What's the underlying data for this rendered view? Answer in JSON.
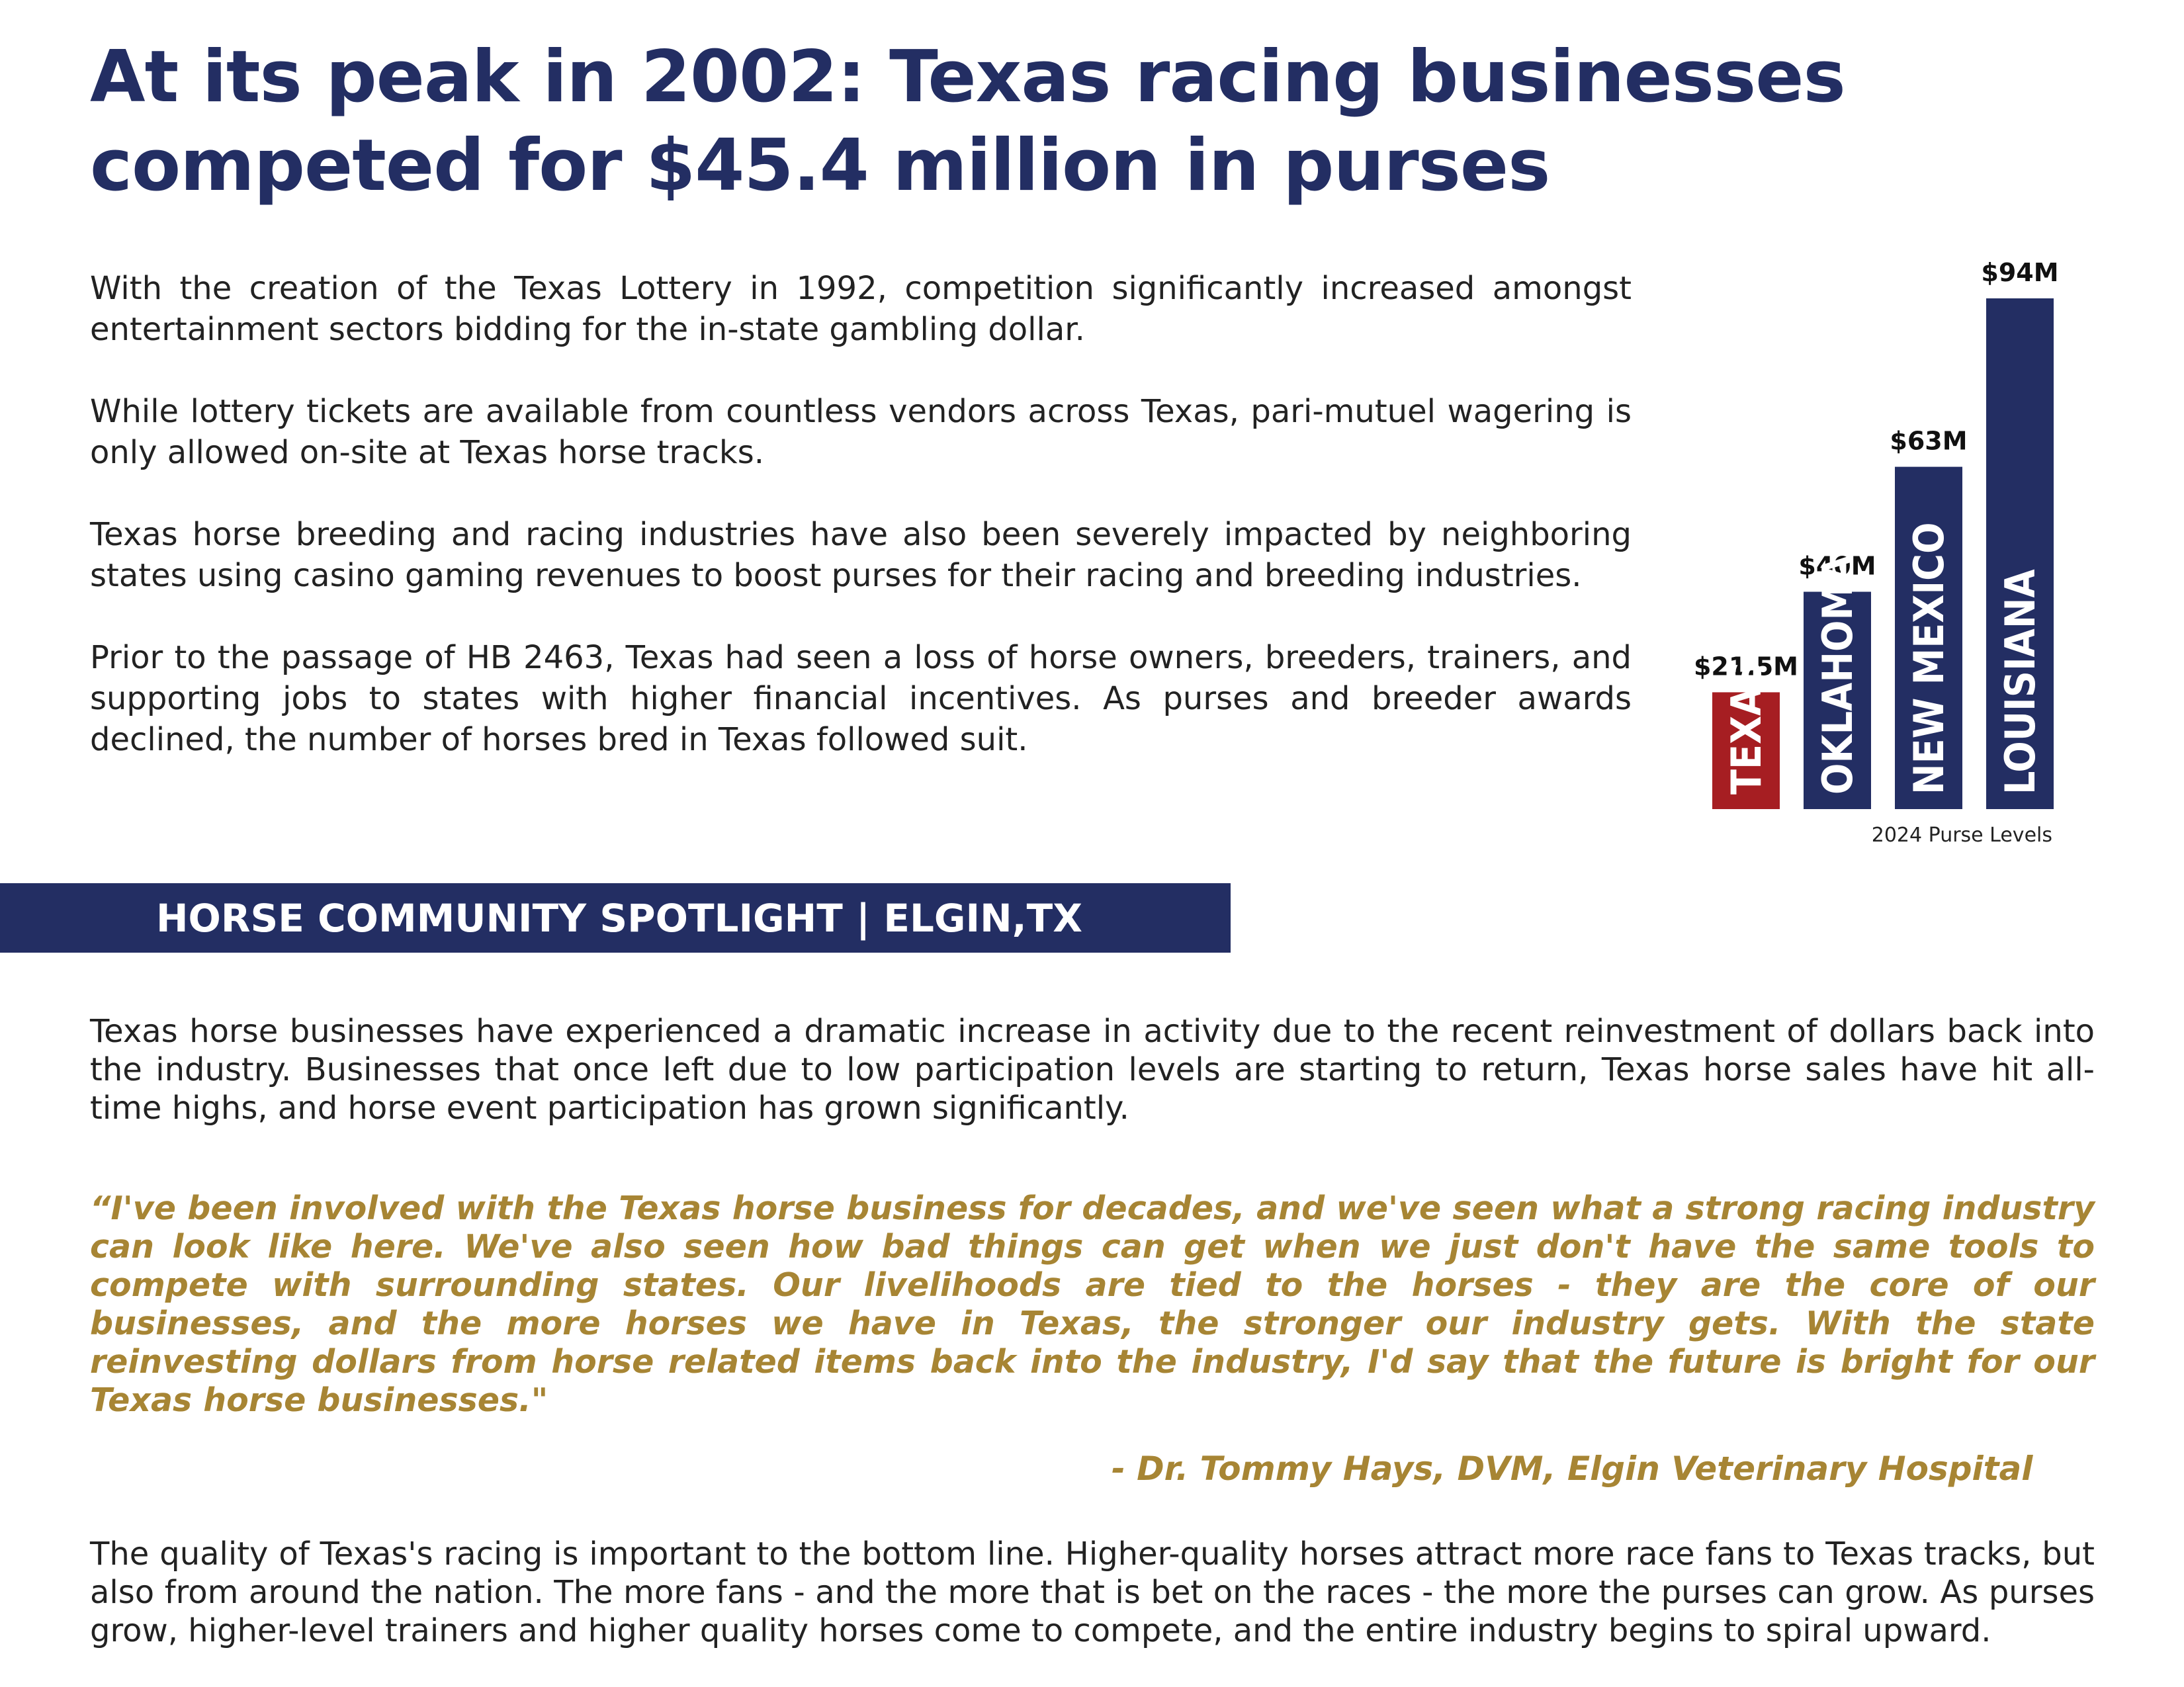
{
  "title": {
    "line1": "At its peak in 2002: Texas racing businesses",
    "line2": "competed for $45.4 million in purses"
  },
  "intro": [
    "With the creation of the Texas Lottery in 1992, competition significantly increased amongst entertainment sectors bidding for the in-state gambling dollar.",
    "While lottery tickets are available from countless vendors across Texas, pari-mutuel wagering is only allowed on-site at Texas horse tracks.",
    "Texas horse breeding and racing industries have also been severely impacted by neighboring states using casino gaming revenues to boost purses for their racing and breeding industries.",
    "Prior to the passage of HB 2463, Texas had seen a loss of horse owners, breeders, trainers, and supporting jobs to states with higher financial incentives. As purses and breeder awards declined, the number of horses bred in Texas followed suit."
  ],
  "chart_data": {
    "type": "bar",
    "categories": [
      "TEXAS",
      "OKLAHOMA",
      "NEW MEXICO",
      "LOUISIANA"
    ],
    "values": [
      21.5,
      40,
      63,
      94
    ],
    "value_labels": [
      "$21.5M",
      "$40M",
      "$63M",
      "$94M"
    ],
    "caption": "2024 Purse Levels",
    "colors": [
      "#a61e22",
      "#232e63",
      "#232e63",
      "#232e63"
    ],
    "ylim": [
      0,
      94
    ]
  },
  "spotlight": {
    "heading": "HORSE COMMUNITY SPOTLIGHT | ELGIN,TX"
  },
  "spotlight_paragraph": "Texas horse businesses have experienced a dramatic increase in activity due to the recent reinvestment of dollars back into the industry. Businesses that once left due to low participation levels are starting to return, Texas horse sales have hit all-time highs, and horse event participation has grown significantly.",
  "quote": "“I've been involved with the Texas horse business for decades, and we've seen what a strong racing industry can look like here. We've also seen how bad things can get when we just don't have the same tools to compete with surrounding states. Our livelihoods are tied to the horses - they are the core of our businesses, and the more horses we have in Texas, the stronger our industry gets. With the state reinvesting dollars from horse related items back into the industry, I'd say that the future is bright for our Texas horse businesses.\"",
  "attribution": "- Dr. Tommy Hays, DVM, Elgin Veterinary Hospital",
  "closing_paragraph": "The quality of Texas's racing is important to the bottom line. Higher-quality horses attract more race fans to Texas tracks, but also from around the nation. The more fans - and the more that is bet on the races - the more the purses can grow. As purses grow, higher-level trainers and higher quality horses come to compete, and the entire industry begins to spiral upward."
}
